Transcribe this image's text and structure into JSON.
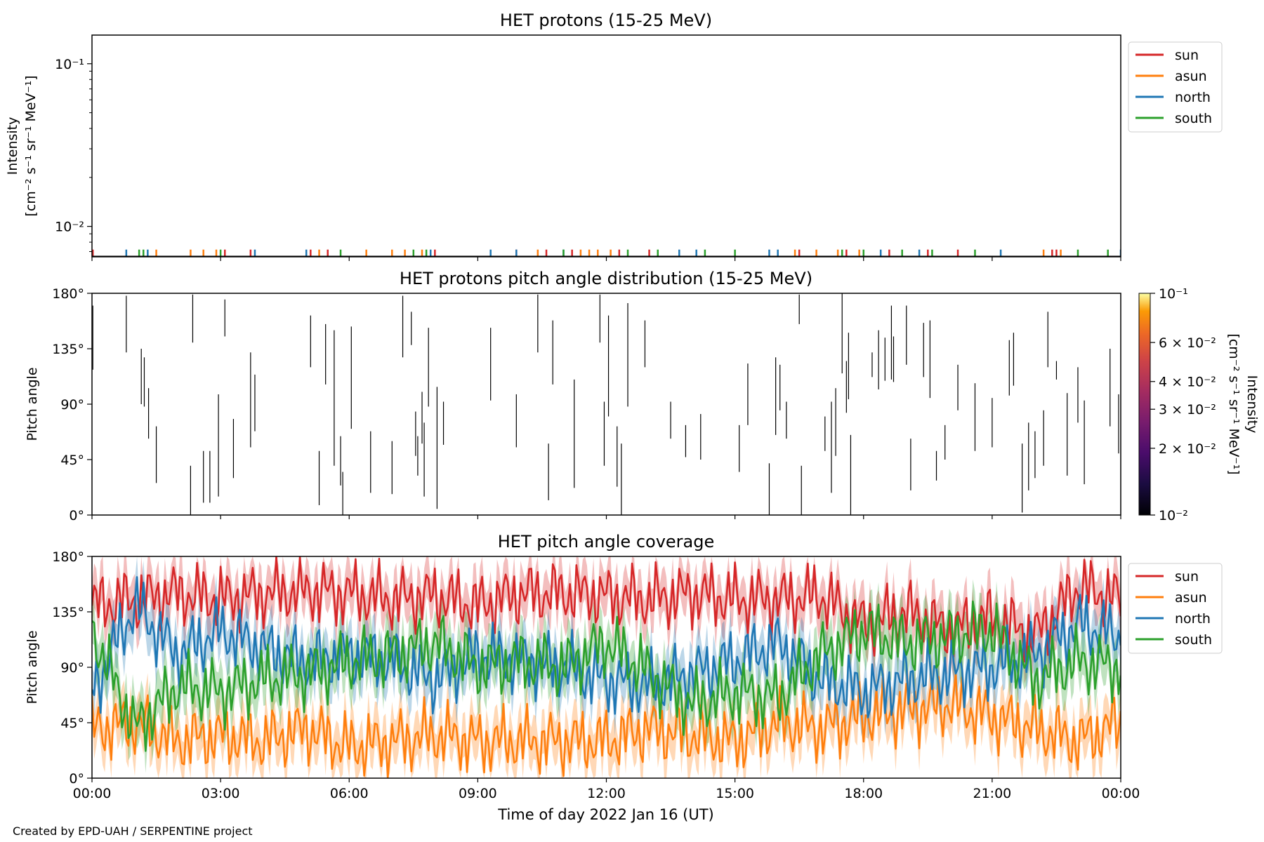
{
  "figure": {
    "credit": "Created by EPD-UAH / SERPENTINE project",
    "xlabel": "Time of day 2022 Jan 16 (UT)",
    "xticks": [
      "00:00",
      "03:00",
      "06:00",
      "09:00",
      "12:00",
      "15:00",
      "18:00",
      "21:00",
      "00:00"
    ]
  },
  "colors": {
    "sun": "#d62728",
    "asun": "#ff7f0e",
    "north": "#1f77b4",
    "south": "#2ca02c"
  },
  "chart_data": [
    {
      "type": "line",
      "title": "HET protons (15-25 MeV)",
      "ylabel": [
        "Intensity",
        "[cm⁻² s⁻¹ sr⁻¹ MeV⁻¹]"
      ],
      "yscale": "log",
      "ylim": [
        0.0065,
        0.15
      ],
      "yticks": [
        {
          "value": 0.1,
          "label": "10⁻¹"
        },
        {
          "value": 0.01,
          "label": "10⁻²"
        }
      ],
      "xlim_hours": [
        0,
        24
      ],
      "legend": {
        "placement": "outside-right",
        "entries": [
          "sun",
          "asun",
          "north",
          "south"
        ]
      },
      "series": [
        {
          "name": "sun",
          "color": "#d62728",
          "spike_value": 0.0072,
          "times_hours": [
            0.02,
            3.1,
            3.7,
            5.1,
            5.5,
            8.0,
            9.9,
            10.6,
            11.2,
            12.3,
            13.0,
            16.5,
            17.6,
            18.6,
            19.5,
            20.2,
            22.4,
            22.5
          ]
        },
        {
          "name": "asun",
          "color": "#ff7f0e",
          "spike_value": 0.0072,
          "times_hours": [
            1.5,
            2.3,
            2.6,
            2.9,
            5.3,
            6.4,
            7.0,
            7.3,
            7.7,
            10.4,
            11.4,
            11.6,
            11.8,
            12.1,
            16.4,
            16.9,
            17.4,
            17.9,
            22.2,
            22.6
          ]
        },
        {
          "name": "north",
          "color": "#1f77b4",
          "spike_value": 0.0072,
          "times_hours": [
            0.8,
            1.3,
            3.8,
            5.0,
            7.9,
            9.3,
            9.9,
            11.0,
            13.7,
            14.1,
            15.8,
            16.0,
            18.4,
            19.3,
            21.2,
            24.0
          ]
        },
        {
          "name": "south",
          "color": "#2ca02c",
          "spike_value": 0.0072,
          "times_hours": [
            1.1,
            1.2,
            3.0,
            5.8,
            7.5,
            7.8,
            11.0,
            12.5,
            13.2,
            14.3,
            15.0,
            17.5,
            18.0,
            18.9,
            19.6,
            20.6,
            23.0,
            23.7
          ]
        }
      ]
    },
    {
      "type": "heatmap",
      "title": "HET protons pitch angle distribution (15-25 MeV)",
      "ylabel": "Pitch angle",
      "ylim": [
        0,
        180
      ],
      "yticks": [
        "0°",
        "45°",
        "90°",
        "135°",
        "180°"
      ],
      "ytick_values": [
        0,
        45,
        90,
        135,
        180
      ],
      "xlim_hours": [
        0,
        24
      ],
      "colorbar": {
        "label": [
          "Intensity",
          "[cm⁻² s⁻¹ sr⁻¹ MeV⁻¹]"
        ],
        "scale": "log",
        "range": [
          0.01,
          0.1
        ],
        "colormap": "inferno",
        "ticks": [
          {
            "value": 0.1,
            "label": "10⁻¹"
          },
          {
            "value": 0.06,
            "label": "6 × 10⁻²"
          },
          {
            "value": 0.04,
            "label": "4 × 10⁻²"
          },
          {
            "value": 0.03,
            "label": "3 × 10⁻²"
          },
          {
            "value": 0.02,
            "label": "2 × 10⁻²"
          },
          {
            "value": 0.01,
            "label": "10⁻²"
          }
        ]
      },
      "segments_hours_deg": [
        [
          0.02,
          118,
          170
        ],
        [
          0.8,
          132,
          178
        ],
        [
          1.15,
          90,
          135
        ],
        [
          1.22,
          88,
          128
        ],
        [
          1.32,
          62,
          103
        ],
        [
          1.5,
          26,
          72
        ],
        [
          2.3,
          0,
          40
        ],
        [
          2.35,
          140,
          179
        ],
        [
          2.6,
          10,
          52
        ],
        [
          2.75,
          10,
          52
        ],
        [
          2.95,
          15,
          98
        ],
        [
          3.1,
          145,
          175
        ],
        [
          3.3,
          30,
          78
        ],
        [
          3.7,
          55,
          132
        ],
        [
          3.8,
          68,
          114
        ],
        [
          5.1,
          120,
          162
        ],
        [
          5.3,
          8,
          52
        ],
        [
          5.45,
          106,
          155
        ],
        [
          5.65,
          40,
          150
        ],
        [
          5.8,
          24,
          64
        ],
        [
          5.85,
          0,
          35
        ],
        [
          6.05,
          70,
          153
        ],
        [
          6.5,
          18,
          68
        ],
        [
          7.0,
          17,
          60
        ],
        [
          7.25,
          128,
          178
        ],
        [
          7.45,
          138,
          165
        ],
        [
          7.55,
          48,
          84
        ],
        [
          7.6,
          32,
          64
        ],
        [
          7.7,
          58,
          100
        ],
        [
          7.75,
          15,
          75
        ],
        [
          7.85,
          88,
          152
        ],
        [
          8.05,
          5,
          104
        ],
        [
          8.2,
          57,
          92
        ],
        [
          9.3,
          93,
          152
        ],
        [
          9.9,
          55,
          98
        ],
        [
          10.4,
          132,
          179
        ],
        [
          10.65,
          12,
          58
        ],
        [
          10.75,
          106,
          158
        ],
        [
          11.25,
          22,
          110
        ],
        [
          11.85,
          140,
          179
        ],
        [
          11.95,
          40,
          92
        ],
        [
          12.05,
          80,
          162
        ],
        [
          12.25,
          23,
          72
        ],
        [
          12.35,
          0,
          58
        ],
        [
          12.5,
          88,
          172
        ],
        [
          12.9,
          120,
          158
        ],
        [
          13.5,
          62,
          92
        ],
        [
          13.85,
          47,
          73
        ],
        [
          14.2,
          45,
          82
        ],
        [
          15.1,
          35,
          73
        ],
        [
          15.3,
          73,
          123
        ],
        [
          15.8,
          0,
          42
        ],
        [
          15.95,
          65,
          128
        ],
        [
          16.05,
          85,
          122
        ],
        [
          16.2,
          62,
          92
        ],
        [
          16.5,
          155,
          179
        ],
        [
          16.55,
          0,
          40
        ],
        [
          17.1,
          52,
          80
        ],
        [
          17.25,
          18,
          92
        ],
        [
          17.35,
          48,
          103
        ],
        [
          17.5,
          115,
          180
        ],
        [
          17.6,
          83,
          125
        ],
        [
          17.65,
          94,
          148
        ],
        [
          17.7,
          0,
          65
        ],
        [
          18.2,
          112,
          132
        ],
        [
          18.35,
          102,
          150
        ],
        [
          18.5,
          109,
          144
        ],
        [
          18.65,
          110,
          170
        ],
        [
          18.7,
          108,
          145
        ],
        [
          19.0,
          122,
          170
        ],
        [
          19.1,
          20,
          62
        ],
        [
          19.4,
          112,
          156
        ],
        [
          19.55,
          95,
          158
        ],
        [
          19.7,
          28,
          52
        ],
        [
          19.9,
          45,
          73
        ],
        [
          20.2,
          85,
          122
        ],
        [
          20.6,
          52,
          107
        ],
        [
          21.0,
          55,
          95
        ],
        [
          21.4,
          97,
          142
        ],
        [
          21.5,
          105,
          148
        ],
        [
          21.7,
          2,
          58
        ],
        [
          21.85,
          20,
          75
        ],
        [
          22.0,
          30,
          68
        ],
        [
          22.2,
          40,
          85
        ],
        [
          22.3,
          120,
          165
        ],
        [
          22.5,
          110,
          125
        ],
        [
          22.75,
          32,
          99
        ],
        [
          23.0,
          75,
          120
        ],
        [
          23.15,
          25,
          93
        ],
        [
          23.75,
          72,
          135
        ],
        [
          23.95,
          50,
          98
        ]
      ]
    },
    {
      "type": "area",
      "title": "HET pitch angle coverage",
      "ylabel": "Pitch angle",
      "ylim": [
        0,
        180
      ],
      "yticks": [
        "0°",
        "45°",
        "90°",
        "135°",
        "180°"
      ],
      "ytick_values": [
        0,
        45,
        90,
        135,
        180
      ],
      "xlim_hours": [
        0,
        24
      ],
      "x_hours": [
        0,
        1,
        2,
        3,
        4,
        5,
        6,
        7,
        8,
        9,
        10,
        11,
        12,
        13,
        14,
        15,
        16,
        17,
        18,
        19,
        20,
        21,
        22,
        23,
        24
      ],
      "band_halfwidth_deg": 18,
      "legend": {
        "placement": "outside-right",
        "entries": [
          "sun",
          "asun",
          "north",
          "south"
        ]
      },
      "series": [
        {
          "name": "sun",
          "color": "#d62728",
          "values": [
            140,
            145,
            150,
            145,
            150,
            152,
            150,
            145,
            148,
            140,
            150,
            150,
            148,
            145,
            150,
            145,
            145,
            148,
            125,
            135,
            120,
            130,
            115,
            155,
            145
          ]
        },
        {
          "name": "asun",
          "color": "#ff7f0e",
          "values": [
            40,
            45,
            30,
            35,
            30,
            40,
            25,
            30,
            35,
            30,
            30,
            30,
            30,
            40,
            35,
            30,
            45,
            40,
            50,
            55,
            60,
            50,
            40,
            30,
            45
          ]
        },
        {
          "name": "north",
          "color": "#1f77b4",
          "values": [
            70,
            140,
            100,
            120,
            105,
            95,
            100,
            95,
            80,
            100,
            95,
            90,
            80,
            75,
            85,
            95,
            110,
            80,
            70,
            80,
            85,
            90,
            100,
            125,
            115
          ]
        },
        {
          "name": "south",
          "color": "#2ca02c",
          "values": [
            120,
            40,
            75,
            70,
            80,
            85,
            95,
            100,
            110,
            90,
            95,
            90,
            110,
            85,
            60,
            70,
            65,
            100,
            120,
            110,
            115,
            120,
            80,
            95,
            90
          ]
        }
      ]
    }
  ]
}
